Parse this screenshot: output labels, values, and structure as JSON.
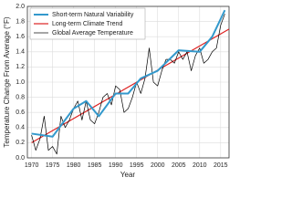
{
  "chart_data": {
    "type": "line",
    "xlabel": "Year",
    "ylabel": "Temperature Change From Average (°F)",
    "xlim": [
      1969,
      2017
    ],
    "xticks": [
      1970,
      1975,
      1980,
      1985,
      1990,
      1995,
      2000,
      2005,
      2010,
      2015
    ],
    "ylim": [
      0,
      2
    ],
    "yticks": [
      {
        "value": 0,
        "label": "0.0"
      },
      {
        "value": 0.2,
        "label": "0.2"
      },
      {
        "value": 0.4,
        "label": "0.4"
      },
      {
        "value": 0.6,
        "label": "0.6"
      },
      {
        "value": 0.8,
        "label": "0.8"
      },
      {
        "value": 1,
        "label": "1.0"
      },
      {
        "value": 1.2,
        "label": "1.2"
      },
      {
        "value": 1.4,
        "label": "1.4"
      },
      {
        "value": 1.6,
        "label": "1.6"
      },
      {
        "value": 1.8,
        "label": "1.8"
      },
      {
        "value": 2,
        "label": "2.0"
      }
    ],
    "grid": true,
    "legend": "upper left",
    "series": [
      {
        "name": "Short-term Natural Variability",
        "color": "#3399cc",
        "width": 2,
        "x": [
          1970,
          1975,
          1980,
          1983,
          1986,
          1990,
          1993,
          1996,
          2000,
          2005,
          2010,
          2013,
          2016
        ],
        "values": [
          0.32,
          0.28,
          0.65,
          0.75,
          0.55,
          0.85,
          0.85,
          1.05,
          1.15,
          1.42,
          1.4,
          1.6,
          1.95
        ]
      },
      {
        "name": "Long-term Climate Trend",
        "color": "#dd2222",
        "width": 1.2,
        "x": [
          1970,
          2017
        ],
        "values": [
          0.2,
          1.7
        ]
      },
      {
        "name": "Global Average Temperature",
        "color": "#000000",
        "width": 0.7,
        "x": [
          1970,
          1971,
          1972,
          1973,
          1974,
          1975,
          1976,
          1977,
          1978,
          1979,
          1980,
          1981,
          1982,
          1983,
          1984,
          1985,
          1986,
          1987,
          1988,
          1989,
          1990,
          1991,
          1992,
          1993,
          1994,
          1995,
          1996,
          1997,
          1998,
          1999,
          2000,
          2001,
          2002,
          2003,
          2004,
          2005,
          2006,
          2007,
          2008,
          2009,
          2010,
          2011,
          2012,
          2013,
          2014,
          2015,
          2016
        ],
        "values": [
          0.3,
          0.1,
          0.25,
          0.55,
          0.1,
          0.15,
          0.05,
          0.55,
          0.4,
          0.5,
          0.65,
          0.75,
          0.5,
          0.75,
          0.5,
          0.45,
          0.6,
          0.8,
          0.85,
          0.7,
          0.95,
          0.9,
          0.6,
          0.65,
          0.8,
          1.0,
          0.85,
          1.05,
          1.45,
          1.0,
          0.95,
          1.15,
          1.3,
          1.3,
          1.25,
          1.4,
          1.3,
          1.4,
          1.15,
          1.35,
          1.45,
          1.25,
          1.3,
          1.4,
          1.45,
          1.75,
          1.9
        ]
      }
    ]
  }
}
